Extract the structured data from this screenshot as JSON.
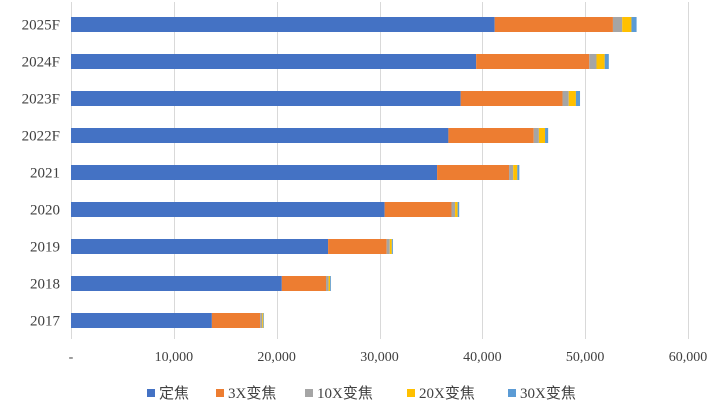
{
  "chart_data": {
    "type": "bar",
    "orientation": "horizontal",
    "stacked": true,
    "title": "",
    "xlabel": "",
    "ylabel": "",
    "xlim": [
      0,
      60000
    ],
    "grid": true,
    "legend_position": "bottom",
    "categories": [
      "2025F",
      "2024F",
      "2023F",
      "2022F",
      "2021",
      "2020",
      "2019",
      "2018",
      "2017"
    ],
    "x_ticks": [
      0,
      10000,
      20000,
      30000,
      40000,
      50000,
      60000
    ],
    "x_tick_labels": [
      "-",
      "10,000",
      "20,000",
      "30,000",
      "40,000",
      "50,000",
      "60,000"
    ],
    "series": [
      {
        "name": "定焦",
        "color": "#4472c4",
        "values": [
          41200,
          39400,
          37900,
          36700,
          35600,
          30500,
          25000,
          20500,
          13700
        ]
      },
      {
        "name": "3X变焦",
        "color": "#ed7d31",
        "values": [
          11500,
          11000,
          9900,
          8300,
          7000,
          6500,
          5700,
          4300,
          4700
        ]
      },
      {
        "name": "10X变焦",
        "color": "#a5a5a5",
        "values": [
          900,
          700,
          600,
          500,
          400,
          350,
          300,
          250,
          200
        ]
      },
      {
        "name": "20X变焦",
        "color": "#ffc000",
        "values": [
          900,
          800,
          700,
          600,
          400,
          250,
          200,
          150,
          100
        ]
      },
      {
        "name": "30X变焦",
        "color": "#5b9bd5",
        "values": [
          500,
          400,
          400,
          300,
          200,
          150,
          100,
          80,
          60
        ]
      }
    ]
  }
}
